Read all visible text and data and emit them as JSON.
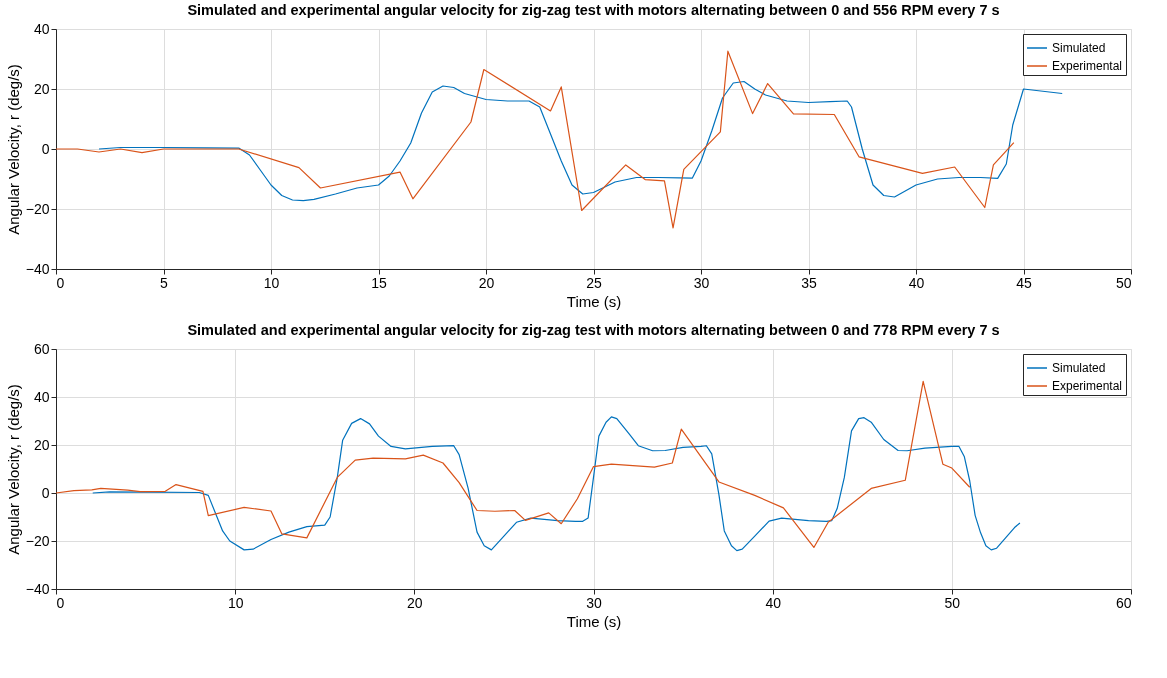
{
  "chart_data": [
    {
      "type": "line",
      "title": "Simulated and experimental angular velocity for zig-zag test with motors alternating between 0 and 556 RPM every 7 s",
      "xlabel": "Time (s)",
      "ylabel": "Angular Velocity, r (deg/s)",
      "xlim": [
        0,
        50
      ],
      "ylim": [
        -40,
        40
      ],
      "xticks": [
        0,
        5,
        10,
        15,
        20,
        25,
        30,
        35,
        40,
        45,
        50
      ],
      "yticks": [
        -40,
        -20,
        0,
        20,
        40
      ],
      "grid": true,
      "legend": "top right",
      "marker": "none",
      "line_style": "solid",
      "series": [
        {
          "name": "Simulated",
          "color": "#0072bd",
          "x": [
            2,
            3,
            5,
            7,
            8.5,
            9,
            9.5,
            10,
            10.5,
            11,
            11.5,
            12,
            13,
            14,
            15,
            15.5,
            16,
            16.5,
            17,
            17.5,
            18,
            18.5,
            19,
            20,
            21,
            22,
            22.5,
            23,
            23.5,
            24,
            24.5,
            25,
            26,
            27,
            28,
            29,
            29.6,
            30,
            30.5,
            31,
            31.5,
            32,
            32.5,
            33,
            34,
            35,
            36,
            36.8,
            37,
            37.5,
            38,
            38.5,
            39,
            40,
            41,
            42,
            43,
            43.8,
            44.2,
            44.5,
            45,
            46.8
          ],
          "values": [
            0,
            0.5,
            0.5,
            0.4,
            0.3,
            -2,
            -7,
            -12,
            -15.5,
            -17,
            -17.2,
            -16.8,
            -15,
            -13,
            -12,
            -9,
            -4,
            2,
            12,
            19,
            21,
            20.5,
            18.5,
            16.5,
            16,
            16,
            14,
            5,
            -4,
            -12,
            -15,
            -14.5,
            -11,
            -9.5,
            -9.5,
            -9.6,
            -9.7,
            -4,
            6,
            17,
            22,
            22.5,
            20,
            18,
            16,
            15.5,
            15.8,
            16,
            14,
            0,
            -12,
            -15.5,
            -16,
            -12,
            -10,
            -9.5,
            -9.5,
            -9.8,
            -5,
            8,
            20,
            18.5
          ]
        },
        {
          "name": "Experimental",
          "color": "#d95319",
          "x": [
            0,
            1,
            2,
            3,
            4,
            5,
            8.5,
            11.3,
            12.3,
            16.0,
            16.6,
            19.3,
            19.9,
            23.0,
            23.5,
            24.45,
            26.5,
            27.4,
            28.3,
            28.7,
            29.2,
            30.9,
            31.25,
            32.4,
            33.1,
            34.3,
            36.2,
            37.35,
            40.3,
            41.8,
            43.2,
            43.6,
            44.55
          ],
          "values": [
            0,
            0,
            -1,
            0,
            -1.2,
            0,
            0,
            -6.2,
            -13,
            -7.7,
            -16.6,
            9,
            26.5,
            12.7,
            20.7,
            -20.5,
            -5.3,
            -10.2,
            -10.6,
            -26.3,
            -6.8,
            5.7,
            32.6,
            11.8,
            21.8,
            11.7,
            11.5,
            -2.6,
            -8.1,
            -6,
            -19.5,
            -5.3,
            2.1
          ]
        }
      ]
    },
    {
      "type": "line",
      "title": "Simulated and experimental angular velocity for zig-zag test with motors alternating between 0 and 778 RPM every 7 s",
      "xlabel": "Time (s)",
      "ylabel": "Angular Velocity, r (deg/s)",
      "xlim": [
        0,
        60
      ],
      "ylim": [
        -40,
        60
      ],
      "xticks": [
        0,
        10,
        20,
        30,
        40,
        50,
        60
      ],
      "yticks": [
        -40,
        -20,
        0,
        20,
        40,
        60
      ],
      "grid": true,
      "legend": "top right",
      "marker": "none",
      "line_style": "solid",
      "series": [
        {
          "name": "Simulated",
          "color": "#0072bd",
          "x": [
            2.05,
            3,
            5,
            8,
            8.5,
            9.3,
            9.7,
            10.5,
            11,
            12,
            13,
            14,
            15,
            15.3,
            15.7,
            16,
            16.5,
            17,
            17.5,
            18,
            18.7,
            19.5,
            21,
            22.2,
            22.5,
            23,
            23.5,
            23.9,
            24.3,
            25,
            25.7,
            26.5,
            28,
            29,
            29.4,
            29.7,
            30,
            30.3,
            30.7,
            31,
            31.3,
            32,
            32.5,
            33.3,
            34,
            35,
            36,
            36.3,
            36.6,
            37,
            37.3,
            37.7,
            38,
            38.3,
            39,
            39.8,
            40.5,
            42,
            43,
            43.3,
            43.6,
            44,
            44.4,
            44.8,
            45.1,
            45.5,
            46.2,
            47,
            47.5,
            48.5,
            50,
            50.4,
            50.7,
            51,
            51.3,
            51.6,
            51.9,
            52.2,
            52.5,
            53,
            53.5,
            53.8
          ],
          "values": [
            0,
            0.5,
            0.4,
            0.2,
            -1,
            -15.8,
            -20,
            -23.7,
            -23.4,
            -19.4,
            -16.3,
            -14,
            -13.4,
            -10,
            6.5,
            22,
            29,
            31,
            28.8,
            23.7,
            19.4,
            18.4,
            19.4,
            19.7,
            16,
            2,
            -16.3,
            -22,
            -23.7,
            -18,
            -12.2,
            -10.5,
            -11.5,
            -11.8,
            -11.8,
            -10.4,
            6.5,
            23.7,
            29.5,
            31.7,
            31,
            24.5,
            19.7,
            17.6,
            17.7,
            19,
            19.4,
            19.7,
            16.3,
            -0.7,
            -15.8,
            -22,
            -24,
            -23.4,
            -18,
            -11.7,
            -10.5,
            -11.5,
            -11.8,
            -11.5,
            -6.5,
            6.5,
            25.9,
            31,
            31.4,
            29.5,
            22.3,
            17.7,
            17.6,
            18.7,
            19.4,
            19.4,
            15.1,
            5,
            -9.3,
            -16.5,
            -22,
            -23.7,
            -23,
            -18.7,
            -14.4,
            -12.5
          ]
        },
        {
          "name": "Experimental",
          "color": "#d95319",
          "x": [
            0,
            1,
            2,
            2.5,
            4,
            4.7,
            6.1,
            6.7,
            8.2,
            8.5,
            10.5,
            12,
            12.6,
            14,
            15.7,
            16.7,
            17.7,
            19.5,
            20.5,
            21.6,
            22.5,
            23.5,
            24.5,
            25.6,
            26.2,
            27.5,
            28.2,
            29.1,
            30,
            31,
            33.4,
            34.4,
            34.9,
            37,
            39,
            40.6,
            42.3,
            43.1,
            45.5,
            47.4,
            48.4,
            49.5,
            50,
            51
          ],
          "values": [
            0,
            1,
            1.3,
            1.9,
            1.2,
            0.6,
            0.7,
            3.5,
            0.7,
            -9.4,
            -6,
            -7.5,
            -17,
            -18.7,
            6.5,
            13.7,
            14.5,
            14.2,
            15.8,
            12.5,
            4.3,
            -7.3,
            -7.6,
            -7.3,
            -11.4,
            -8.3,
            -12.8,
            -2.4,
            11,
            12,
            10.8,
            12.5,
            26.6,
            4.6,
            -1,
            -6.2,
            -22.7,
            -12.2,
            1.9,
            5.3,
            46.5,
            12,
            10.4,
            2.4
          ]
        }
      ]
    }
  ]
}
